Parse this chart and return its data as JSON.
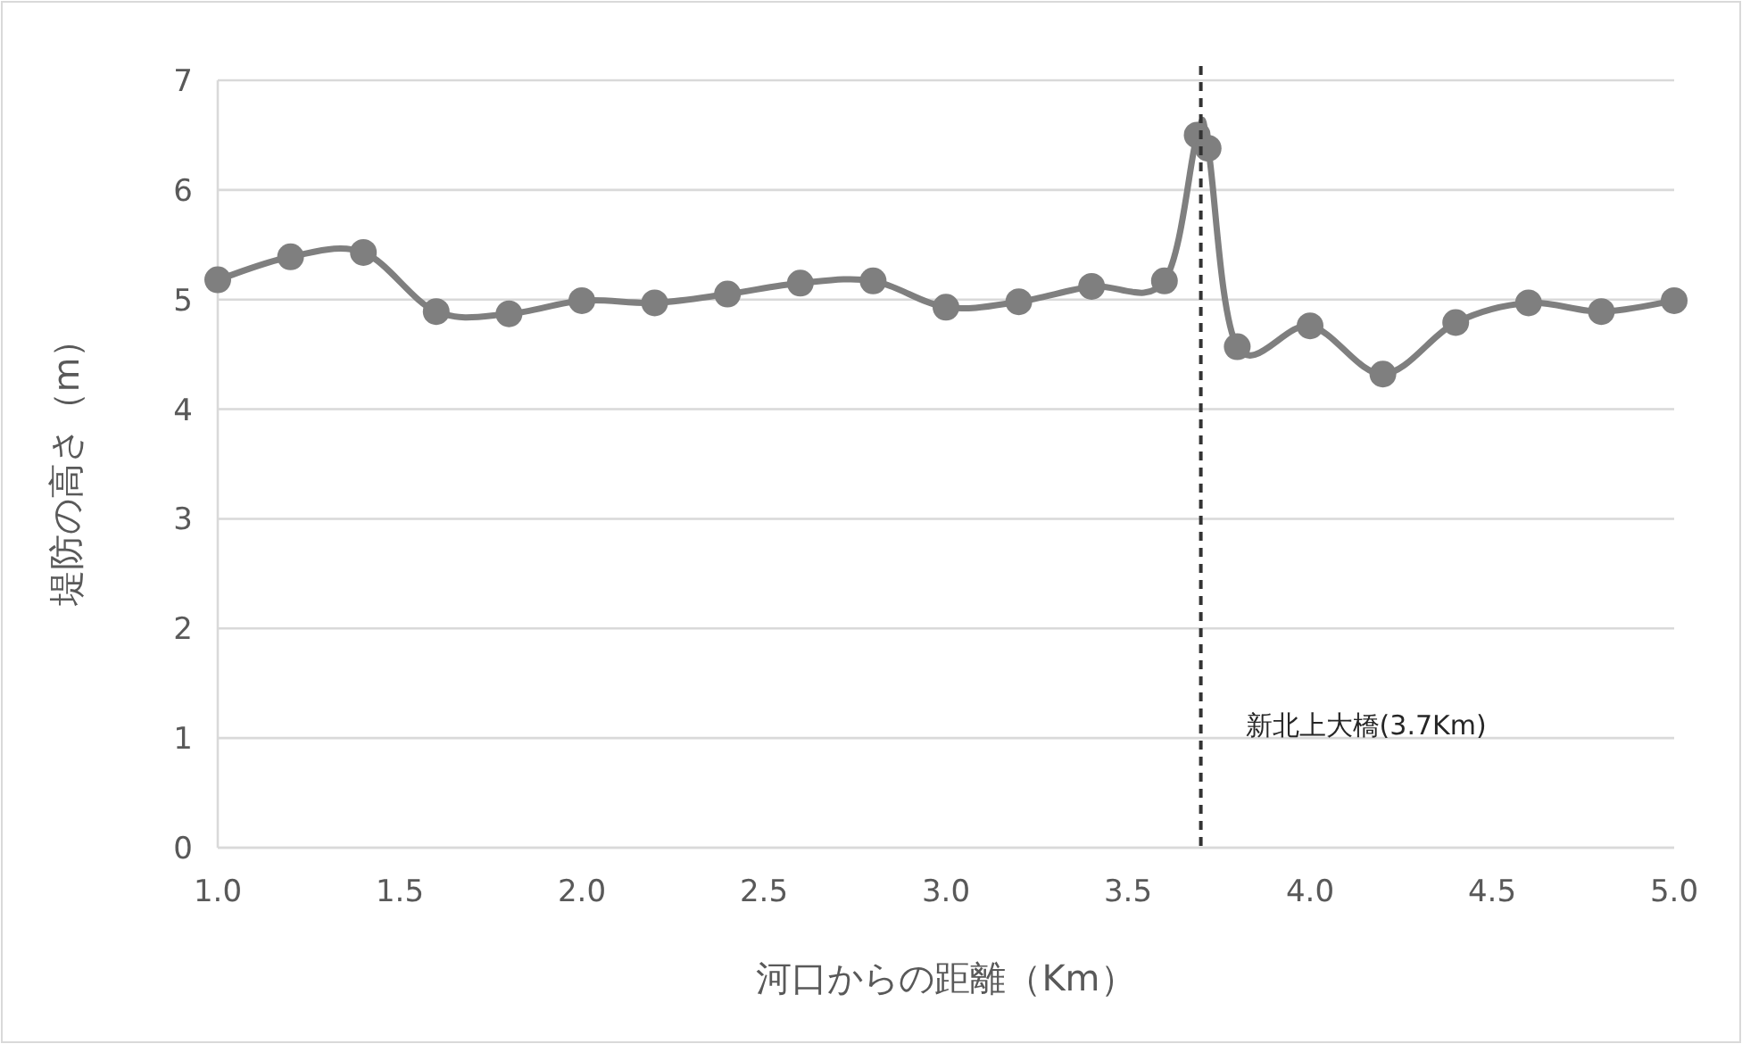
{
  "chart_data": {
    "type": "line",
    "xlabel": "河口からの距離（Km）",
    "ylabel": "堤防の高さ（m）",
    "x": [
      1.0,
      1.2,
      1.4,
      1.6,
      1.8,
      2.0,
      2.2,
      2.4,
      2.6,
      2.8,
      3.0,
      3.2,
      3.4,
      3.6,
      3.69,
      3.72,
      3.8,
      4.0,
      4.2,
      4.4,
      4.6,
      4.8,
      5.0
    ],
    "series": [
      {
        "color": "#7f7f7f",
        "values": [
          5.18,
          5.39,
          5.43,
          4.89,
          4.87,
          4.99,
          4.97,
          5.05,
          5.15,
          5.17,
          4.93,
          4.98,
          5.12,
          5.17,
          6.5,
          6.38,
          4.57,
          4.76,
          4.32,
          4.79,
          4.97,
          4.89,
          4.99
        ]
      }
    ],
    "xlim": [
      1.0,
      5.0
    ],
    "ylim": [
      0,
      7
    ],
    "xticks": [
      {
        "value": 1.0,
        "label": "1.0"
      },
      {
        "value": 1.5,
        "label": "1.5"
      },
      {
        "value": 2.0,
        "label": "2.0"
      },
      {
        "value": 2.5,
        "label": "2.5"
      },
      {
        "value": 3.0,
        "label": "3.0"
      },
      {
        "value": 3.5,
        "label": "3.5"
      },
      {
        "value": 4.0,
        "label": "4.0"
      },
      {
        "value": 4.5,
        "label": "4.5"
      },
      {
        "value": 5.0,
        "label": "5.0"
      }
    ],
    "yticks": [
      0,
      1,
      2,
      3,
      4,
      5,
      6,
      7
    ],
    "ref_lines": [
      {
        "axis": "x",
        "value": 3.7,
        "label": "新北上大橋(3.7Km)",
        "color": "#333333",
        "line_style": "dashed"
      }
    ],
    "grid": "y",
    "marker": "circle",
    "line_style": "solid"
  }
}
